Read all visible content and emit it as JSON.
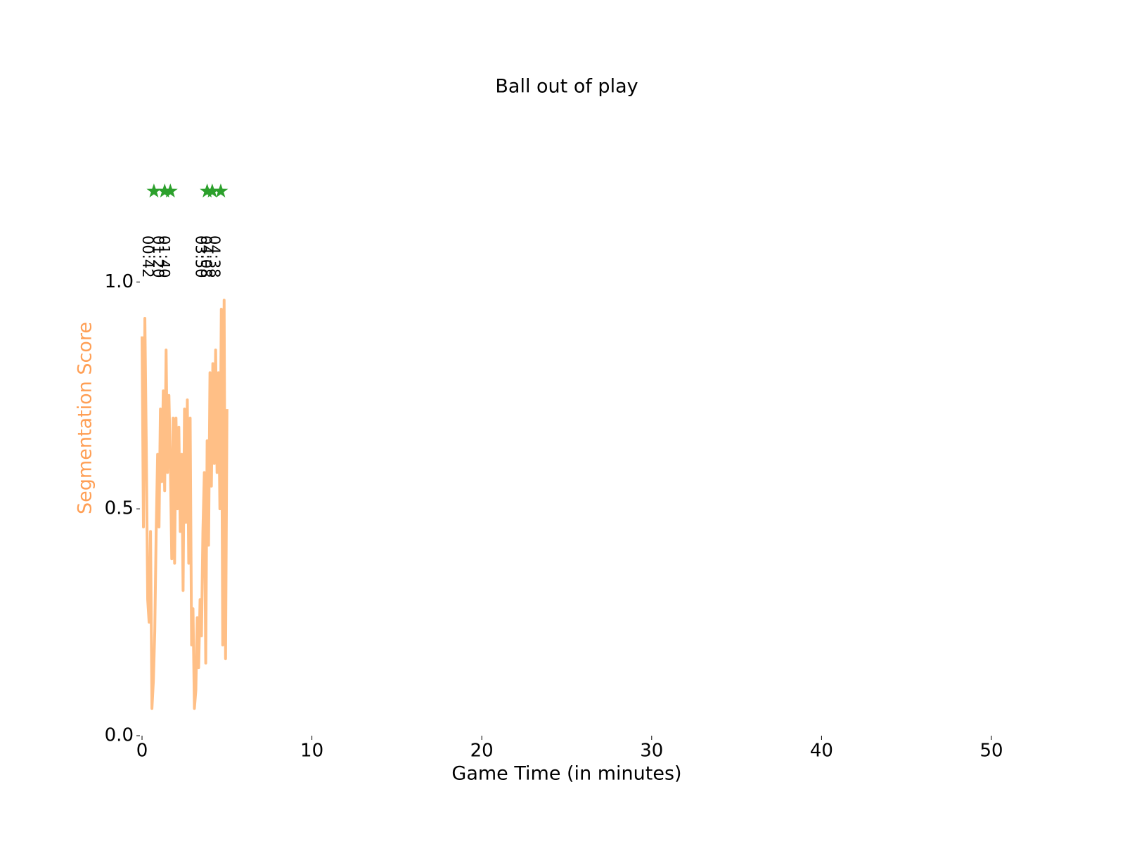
{
  "chart_data": {
    "type": "line",
    "title": "Ball out of play",
    "xlabel": "Game Time (in minutes)",
    "ylabel": "Segmentation Score",
    "ylabel_color": "#ff9f55",
    "xlim": [
      0,
      50
    ],
    "xticks": [
      0,
      10,
      20,
      30,
      40,
      50
    ],
    "ylim": [
      0,
      1.4
    ],
    "yticks": [
      {
        "value": 0,
        "label": "0.0"
      },
      {
        "value": 0.5,
        "label": "0.5"
      },
      {
        "value": 1,
        "label": "1.0"
      }
    ],
    "x": [
      0,
      0.083,
      0.167,
      0.25,
      0.333,
      0.417,
      0.5,
      0.583,
      0.667,
      0.75,
      0.833,
      0.917,
      1,
      1.083,
      1.167,
      1.25,
      1.333,
      1.417,
      1.5,
      1.583,
      1.667,
      1.75,
      1.833,
      1.917,
      2,
      2.083,
      2.167,
      2.25,
      2.333,
      2.417,
      2.5,
      2.583,
      2.667,
      2.75,
      2.833,
      2.917,
      3,
      3.083,
      3.167,
      3.25,
      3.333,
      3.417,
      3.5,
      3.583,
      3.667,
      3.75,
      3.833,
      3.917,
      4,
      4.083,
      4.167,
      4.25,
      4.333,
      4.417,
      4.5,
      4.583,
      4.667,
      4.75,
      4.833,
      4.917,
      5
    ],
    "series": [
      {
        "name": "Segmentation Score",
        "color": "#ffbf86",
        "values": [
          0.88,
          0.46,
          0.92,
          0.64,
          0.3,
          0.25,
          0.45,
          0.06,
          0.12,
          0.23,
          0.45,
          0.62,
          0.46,
          0.72,
          0.56,
          0.76,
          0.54,
          0.85,
          0.58,
          0.75,
          0.6,
          0.39,
          0.7,
          0.38,
          0.7,
          0.5,
          0.68,
          0.45,
          0.62,
          0.32,
          0.72,
          0.47,
          0.74,
          0.38,
          0.7,
          0.2,
          0.28,
          0.06,
          0.1,
          0.26,
          0.15,
          0.3,
          0.22,
          0.45,
          0.58,
          0.16,
          0.65,
          0.42,
          0.8,
          0.55,
          0.82,
          0.6,
          0.85,
          0.58,
          0.8,
          0.5,
          0.94,
          0.2,
          0.96,
          0.17,
          0.72
        ]
      }
    ],
    "events": {
      "color": "#2ca02c",
      "x": [
        0.7,
        1.333,
        1.667,
        3.833,
        4.133,
        4.633
      ],
      "y": [
        1.2,
        1.2,
        1.2,
        1.2,
        1.2,
        1.2
      ],
      "labels": [
        "00:42",
        "01:20",
        "01:40",
        "03:50",
        "04:08",
        "04:38"
      ]
    }
  }
}
